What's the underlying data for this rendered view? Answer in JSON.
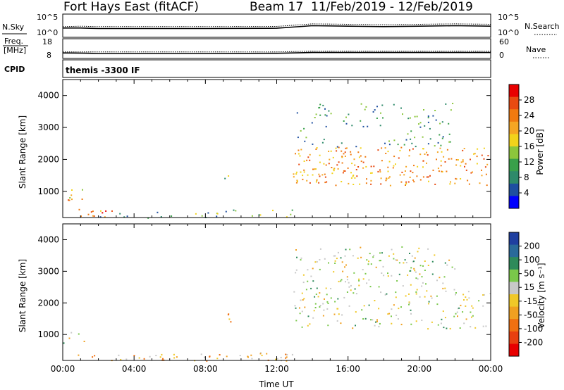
{
  "header": {
    "title": "Fort Hays East (fitACF)",
    "beam": "Beam 17",
    "date_range": "11/Feb/2019 - 12/Feb/2019"
  },
  "nsky_panel": {
    "left_label": "N.Sky",
    "left_ticks": [
      "10^5",
      "10^0"
    ],
    "right_label": "N.Search",
    "right_ticks": [
      "10^5",
      "10^0"
    ]
  },
  "freq_panel": {
    "left_label_1": "Freq.",
    "left_label_2": "[MHz]",
    "left_ticks": [
      "18",
      "8"
    ],
    "right_label": "Nave",
    "right_ticks": [
      "60",
      "0"
    ]
  },
  "cpid": {
    "label": "CPID",
    "value": "themis -3300 IF"
  },
  "colors": {
    "power": [
      "#0000ff",
      "#1e4fa0",
      "#2e8a6a",
      "#39a04a",
      "#8cc63c",
      "#f2d31b",
      "#f5a623",
      "#f07a10",
      "#e84a10",
      "#e80000"
    ],
    "velocity": [
      "#1f3fa0",
      "#2a6a9a",
      "#2e8a5a",
      "#7ac84a",
      "#c8c8c8",
      "#f0c828",
      "#f0a020",
      "#f07010",
      "#e84010",
      "#e80000"
    ]
  },
  "chart_data": [
    {
      "type": "line",
      "name": "nsky-nsearch",
      "xlabel": "",
      "ylabel": "",
      "x": [
        "00:00",
        "01:00",
        "02:00",
        "04:00",
        "08:00",
        "12:00",
        "14:00",
        "16:00",
        "18:00",
        "20:00",
        "22:00",
        "24:00"
      ],
      "series": [
        {
          "name": "N.Sky",
          "values": [
            2.0,
            2.0,
            1.9,
            1.9,
            1.9,
            1.95,
            2.5,
            2.4,
            2.3,
            2.4,
            2.5,
            2.4
          ]
        },
        {
          "name": "N.Search",
          "values": [
            2.3,
            2.4,
            2.3,
            2.3,
            2.3,
            2.35,
            2.9,
            2.8,
            2.7,
            2.8,
            2.9,
            2.8
          ]
        }
      ]
    },
    {
      "type": "line",
      "name": "freq-nave",
      "x": [
        "00:00",
        "01:00",
        "02:00",
        "04:00",
        "08:00",
        "12:00",
        "14:00",
        "16:00",
        "18:00",
        "20:00",
        "22:00",
        "24:00"
      ],
      "series": [
        {
          "name": "Freq.",
          "values": [
            10.8,
            10.7,
            10.5,
            10.5,
            10.5,
            10.6,
            11.0,
            11.0,
            11.0,
            11.0,
            11.0,
            11.0
          ]
        },
        {
          "name": "Nave",
          "values": [
            20,
            20,
            20,
            20,
            20,
            20,
            22,
            22,
            22,
            22,
            22,
            22
          ]
        }
      ]
    },
    {
      "type": "heatmap",
      "name": "power",
      "xlabel": "",
      "ylabel": "Slant Range [km]",
      "xlim": [
        0,
        24
      ],
      "ylim": [
        180,
        4500
      ],
      "x_ticks": [],
      "y_ticks": [
        "1000",
        "2000",
        "3000",
        "4000"
      ],
      "colorbar_label": "Power [dB]",
      "colorbar_ticks": [
        "4",
        "8",
        "12",
        "16",
        "20",
        "24",
        "28"
      ],
      "regions": [
        {
          "t0": 0.0,
          "t1": 1.2,
          "r0": 700,
          "r1": 1100,
          "level": 0.65
        },
        {
          "t0": 0.8,
          "t1": 3.0,
          "r0": 200,
          "r1": 450,
          "level": 0.8
        },
        {
          "t0": 8.9,
          "t1": 9.5,
          "r0": 1300,
          "r1": 1700,
          "level": 0.4
        },
        {
          "t0": 12.9,
          "t1": 24.0,
          "r0": 1200,
          "r1": 2400,
          "level": 0.7
        },
        {
          "t0": 13.0,
          "t1": 22.0,
          "r0": 2400,
          "r1": 3800,
          "level": 0.3
        },
        {
          "t0": 2.0,
          "t1": 13.0,
          "r0": 180,
          "r1": 450,
          "level": 0.35
        }
      ]
    },
    {
      "type": "heatmap",
      "name": "velocity",
      "xlabel": "Time UT",
      "ylabel": "Slant Range [km]",
      "xlim": [
        0,
        24
      ],
      "ylim": [
        180,
        4500
      ],
      "x_ticks": [
        "00:00",
        "04:00",
        "08:00",
        "12:00",
        "16:00",
        "20:00",
        "00:00"
      ],
      "y_ticks": [
        "1000",
        "2000",
        "3000",
        "4000"
      ],
      "colorbar_label": "Velocity [m s⁻¹]",
      "colorbar_ticks": [
        "200",
        "100",
        "50",
        "15",
        "-15",
        "-50",
        "-100",
        "-200"
      ],
      "regions": [
        {
          "t0": 0.0,
          "t1": 1.2,
          "r0": 700,
          "r1": 1100,
          "level": 0.45
        },
        {
          "t0": 0.8,
          "t1": 13.0,
          "r0": 180,
          "r1": 450,
          "level": 0.6
        },
        {
          "t0": 8.9,
          "t1": 9.5,
          "r0": 1300,
          "r1": 1700,
          "level": 0.65
        },
        {
          "t0": 12.9,
          "t1": 24.0,
          "r0": 1200,
          "r1": 2400,
          "level": 0.45
        },
        {
          "t0": 13.0,
          "t1": 22.0,
          "r0": 2400,
          "r1": 3800,
          "level": 0.45
        }
      ]
    }
  ]
}
